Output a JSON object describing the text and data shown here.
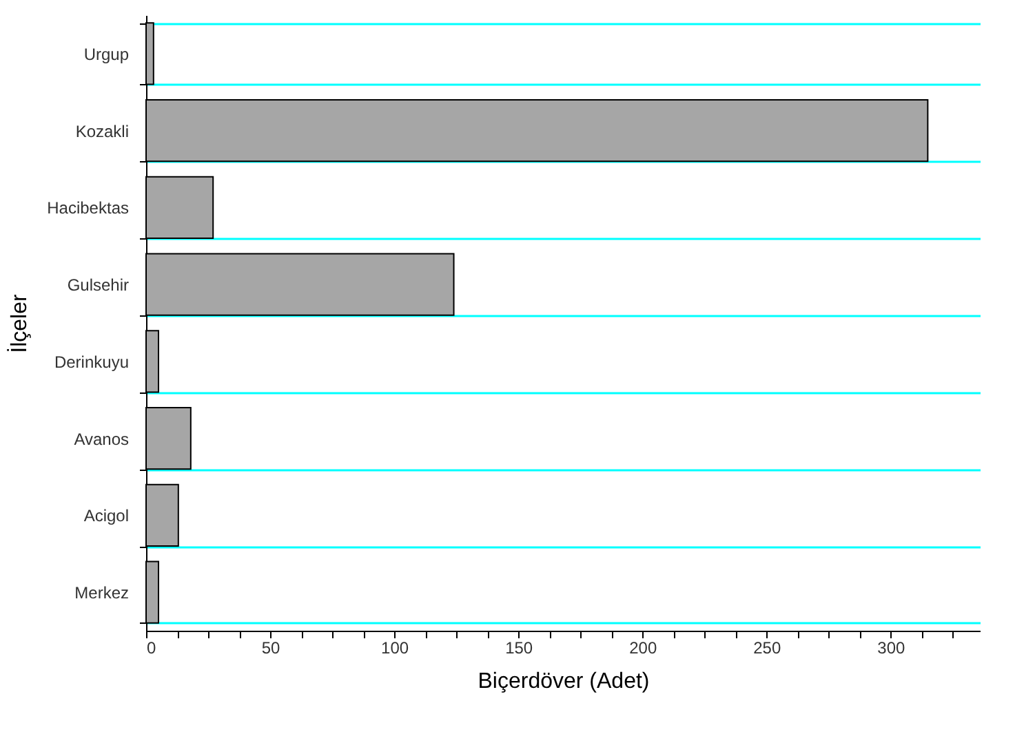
{
  "chart_data": {
    "type": "bar",
    "orientation": "horizontal",
    "xlabel": "Biçerdöver (Adet)",
    "ylabel": "İlçeler",
    "categories": [
      "Urgup",
      "Kozakli",
      "Hacibektas",
      "Gulsehir",
      "Derinkuyu",
      "Avanos",
      "Acigol",
      "Merkez"
    ],
    "values": [
      3,
      315,
      27,
      124,
      5,
      18,
      13,
      5
    ],
    "color": "#a6a6a6",
    "xlim": [
      0,
      336
    ],
    "xticks": [
      0,
      {
        "value": 12.5,
        "label": null
      },
      {
        "value": 25,
        "label": null
      },
      {
        "value": 37.5,
        "label": null
      },
      50,
      {
        "value": 62.5,
        "label": null
      },
      {
        "value": 75,
        "label": null
      },
      {
        "value": 87.5,
        "label": null
      },
      100,
      {
        "value": 112.5,
        "label": null
      },
      {
        "value": 125,
        "label": null
      },
      {
        "value": 137.5,
        "label": null
      },
      150,
      {
        "value": 162.5,
        "label": null
      },
      {
        "value": 175,
        "label": null
      },
      {
        "value": 187.5,
        "label": null
      },
      200,
      {
        "value": 212.5,
        "label": null
      },
      {
        "value": 225,
        "label": null
      },
      {
        "value": 237.5,
        "label": null
      },
      250,
      {
        "value": 262.5,
        "label": null
      },
      {
        "value": 275,
        "label": null
      },
      {
        "value": 287.5,
        "label": null
      },
      300,
      {
        "value": 312.5,
        "label": null
      },
      {
        "value": 325,
        "label": null
      }
    ],
    "grid": "y"
  }
}
